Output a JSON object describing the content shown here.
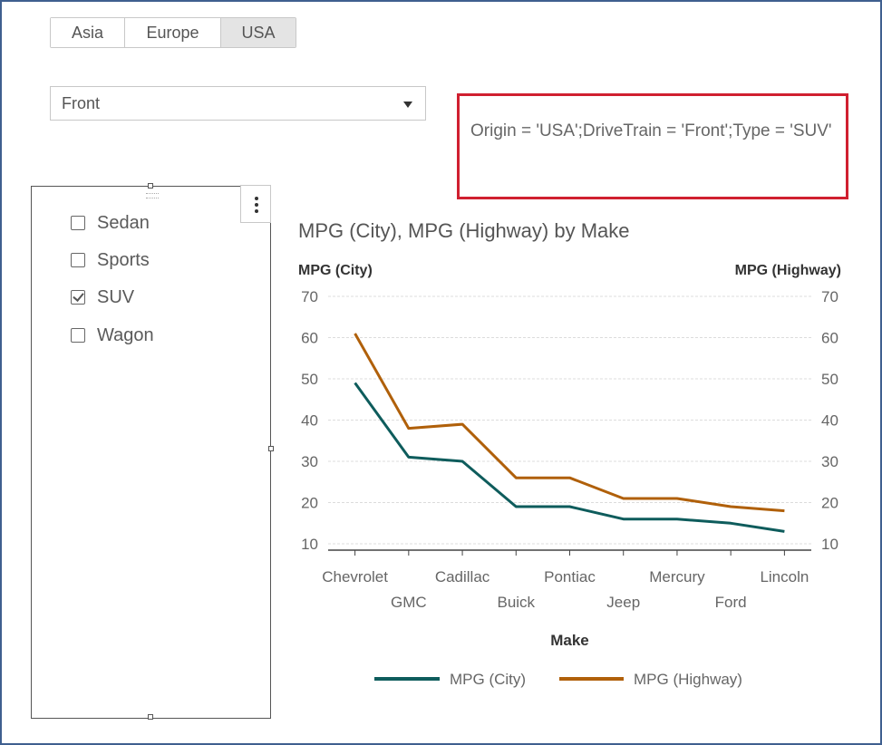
{
  "origin_buttons": [
    {
      "label": "Asia",
      "selected": false
    },
    {
      "label": "Europe",
      "selected": false
    },
    {
      "label": "USA",
      "selected": true
    }
  ],
  "drivetrain_dropdown": {
    "value": "Front"
  },
  "filter_text": "Origin = 'USA';DriveTrain = 'Front';Type = 'SUV'",
  "type_list": [
    {
      "label": "Sedan",
      "checked": false
    },
    {
      "label": "Sports",
      "checked": false
    },
    {
      "label": "SUV",
      "checked": true
    },
    {
      "label": "Wagon",
      "checked": false
    }
  ],
  "chart_data": {
    "type": "line",
    "title": "MPG (City), MPG (Highway) by Make",
    "xlabel": "Make",
    "ylabel_left": "MPG (City)",
    "ylabel_right": "MPG (Highway)",
    "ylim": [
      10,
      70
    ],
    "yticks": [
      10,
      20,
      30,
      40,
      50,
      60,
      70
    ],
    "categories": [
      "Chevrolet",
      "GMC",
      "Cadillac",
      "Buick",
      "Pontiac",
      "Jeep",
      "Mercury",
      "Ford",
      "Lincoln"
    ],
    "series": [
      {
        "name": "MPG (City)",
        "color": "#0e5c5c",
        "values": [
          49,
          31,
          30,
          19,
          19,
          16,
          16,
          15,
          13
        ]
      },
      {
        "name": "MPG (Highway)",
        "color": "#b0600a",
        "values": [
          61,
          38,
          39,
          26,
          26,
          21,
          21,
          19,
          18
        ]
      }
    ],
    "grid": true,
    "legend": "bottom"
  }
}
